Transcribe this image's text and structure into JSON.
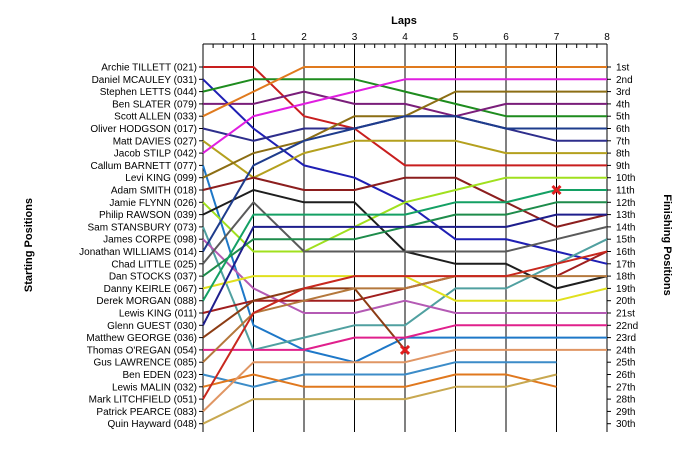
{
  "chart_data": {
    "type": "line",
    "title": "",
    "xlabel": "Laps",
    "ylabel_left": "Starting Positions",
    "ylabel_right": "Finishing Positions",
    "x": [
      0,
      1,
      2,
      3,
      4,
      5,
      6,
      7,
      8
    ],
    "lap_ticks": [
      "1",
      "2",
      "3",
      "4",
      "5",
      "6",
      "7",
      "8"
    ],
    "xlim": [
      0,
      8
    ],
    "grid": true,
    "drivers": [
      "Archie TILLETT (021)",
      "Daniel MCAULEY (031)",
      "Stephen LETTS (044)",
      "Ben SLATER (079)",
      "Scott ALLEN (033)",
      "Oliver HODGSON (017)",
      "Matt DAVIES (027)",
      "Jacob STILP (042)",
      "Callum BARNETT (077)",
      "Levi KING (099)",
      "Adam SMITH (018)",
      "Jamie FLYNN (026)",
      "Philip RAWSON (039)",
      "Sam STANSBURY (073)",
      "James CORPE (098)",
      "Jonathan WILLIAMS (014)",
      "Chad LITTLE (025)",
      "Dan STOCKS (037)",
      "Danny KEIRLE (067)",
      "Derek MORGAN (088)",
      "Lewis KING (011)",
      "Glenn GUEST (030)",
      "Matthew GEORGE (036)",
      "Thomas O'REGAN (054)",
      "Gus LAWRENCE (085)",
      "Ben EDEN (023)",
      "Lewis MALIN (032)",
      "Mark LITCHFIELD (051)",
      "Patrick PEARCE (083)",
      "Quin Hayward (048)"
    ],
    "finishing_positions": [
      "1st",
      "2nd",
      "3rd",
      "4th",
      "5th",
      "6th",
      "7th",
      "8th",
      "9th",
      "10th",
      "11th",
      "12th",
      "13th",
      "14th",
      "15th",
      "16th",
      "17th",
      "18th",
      "19th",
      "20th",
      "21st",
      "22nd",
      "23rd",
      "24th",
      "25th",
      "26th",
      "27th",
      "28th",
      "29th",
      "30th"
    ],
    "series": [
      {
        "color": "#c81e1e",
        "positions": [
          1,
          1,
          5,
          6,
          9,
          9,
          9,
          9,
          9
        ]
      },
      {
        "color": "#1f1fb4",
        "positions": [
          2,
          6,
          9,
          10,
          12,
          15,
          15,
          16,
          17
        ]
      },
      {
        "color": "#1e8c1e",
        "positions": [
          3,
          2,
          2,
          2,
          3,
          4,
          5,
          5,
          5
        ]
      },
      {
        "color": "#7a1e7a",
        "positions": [
          4,
          4,
          3,
          4,
          4,
          5,
          4,
          4,
          4
        ]
      },
      {
        "color": "#e07a1e",
        "positions": [
          5,
          3,
          1,
          1,
          1,
          1,
          1,
          1,
          1
        ]
      },
      {
        "color": "#2e2e8c",
        "positions": [
          6,
          7,
          6,
          6,
          5,
          5,
          6,
          7,
          7
        ]
      },
      {
        "color": "#b4a01e",
        "positions": [
          7,
          10,
          8,
          7,
          7,
          7,
          8,
          8,
          8
        ]
      },
      {
        "color": "#e01ee0",
        "positions": [
          8,
          5,
          4,
          3,
          2,
          2,
          2,
          2,
          2
        ]
      },
      {
        "color": "#1e78c8",
        "positions": [
          9,
          22,
          24,
          25,
          23,
          23,
          23,
          23,
          23
        ]
      },
      {
        "color": "#8c6e14",
        "positions": [
          10,
          8,
          7,
          5,
          5,
          3,
          3,
          3,
          3
        ]
      },
      {
        "color": "#8c1e1e",
        "positions": [
          11,
          10,
          11,
          11,
          10,
          10,
          12,
          14,
          13
        ]
      },
      {
        "color": "#a0e01e",
        "positions": [
          12,
          16,
          16,
          14,
          12,
          11,
          10,
          10,
          10
        ]
      },
      {
        "color": "#1e1e1e",
        "positions": [
          13,
          11,
          12,
          12,
          16,
          17,
          17,
          19,
          18
        ]
      },
      {
        "color": "#50a0a0",
        "positions": [
          14,
          24,
          23,
          22,
          22,
          19,
          19,
          17,
          15
        ]
      },
      {
        "color": "#b45ab4",
        "positions": [
          15,
          19,
          21,
          21,
          20,
          21,
          21,
          21,
          21
        ]
      },
      {
        "color": "#1e3c8c",
        "positions": [
          16,
          9,
          7,
          6,
          5,
          5,
          6,
          6,
          6
        ]
      },
      {
        "color": "#5a5a5a",
        "positions": [
          17,
          12,
          16,
          16,
          16,
          16,
          16,
          15,
          14
        ]
      },
      {
        "color": "#1e8c4b",
        "positions": [
          18,
          15,
          15,
          15,
          14,
          13,
          13,
          12,
          12
        ]
      },
      {
        "color": "#e0e01e",
        "positions": [
          19,
          18,
          18,
          18,
          18,
          20,
          20,
          20,
          19
        ]
      },
      {
        "color": "#14a064",
        "positions": [
          20,
          13,
          13,
          13,
          13,
          12,
          12,
          11,
          11
        ]
      },
      {
        "color": "#a01e1e",
        "positions": [
          21,
          20,
          20,
          20,
          19,
          18,
          18,
          18,
          16
        ]
      },
      {
        "color": "#1e1e8c",
        "positions": [
          22,
          14,
          14,
          14,
          14,
          14,
          14,
          13,
          13
        ]
      },
      {
        "color": "#8c3c14",
        "positions": [
          23,
          20,
          19,
          19,
          24
        ]
      },
      {
        "color": "#e0208c",
        "positions": [
          24,
          24,
          24,
          23,
          23,
          22,
          22,
          22,
          22
        ]
      },
      {
        "color": "#b4783c",
        "positions": [
          25,
          21,
          20,
          19,
          19,
          18,
          18,
          18,
          18
        ]
      },
      {
        "color": "#3c8cc8",
        "positions": [
          26,
          27,
          26,
          26,
          26,
          25,
          25,
          25
        ]
      },
      {
        "color": "#e0781e",
        "positions": [
          27,
          26,
          27,
          27,
          27,
          26,
          26,
          27
        ]
      },
      {
        "color": "#c8281e",
        "positions": [
          28,
          21,
          19,
          18,
          18,
          18,
          18,
          17,
          16
        ]
      },
      {
        "color": "#e09664",
        "positions": [
          29,
          25,
          25,
          25,
          25,
          24,
          24,
          24,
          24
        ]
      },
      {
        "color": "#c8a850",
        "positions": [
          30,
          28,
          28,
          28,
          28,
          27,
          27,
          26
        ]
      }
    ],
    "retirements": [
      {
        "lap": 7,
        "position": 11,
        "color": "#e01e1e"
      },
      {
        "lap": 4,
        "position": 24,
        "color": "#e01e1e"
      }
    ]
  }
}
